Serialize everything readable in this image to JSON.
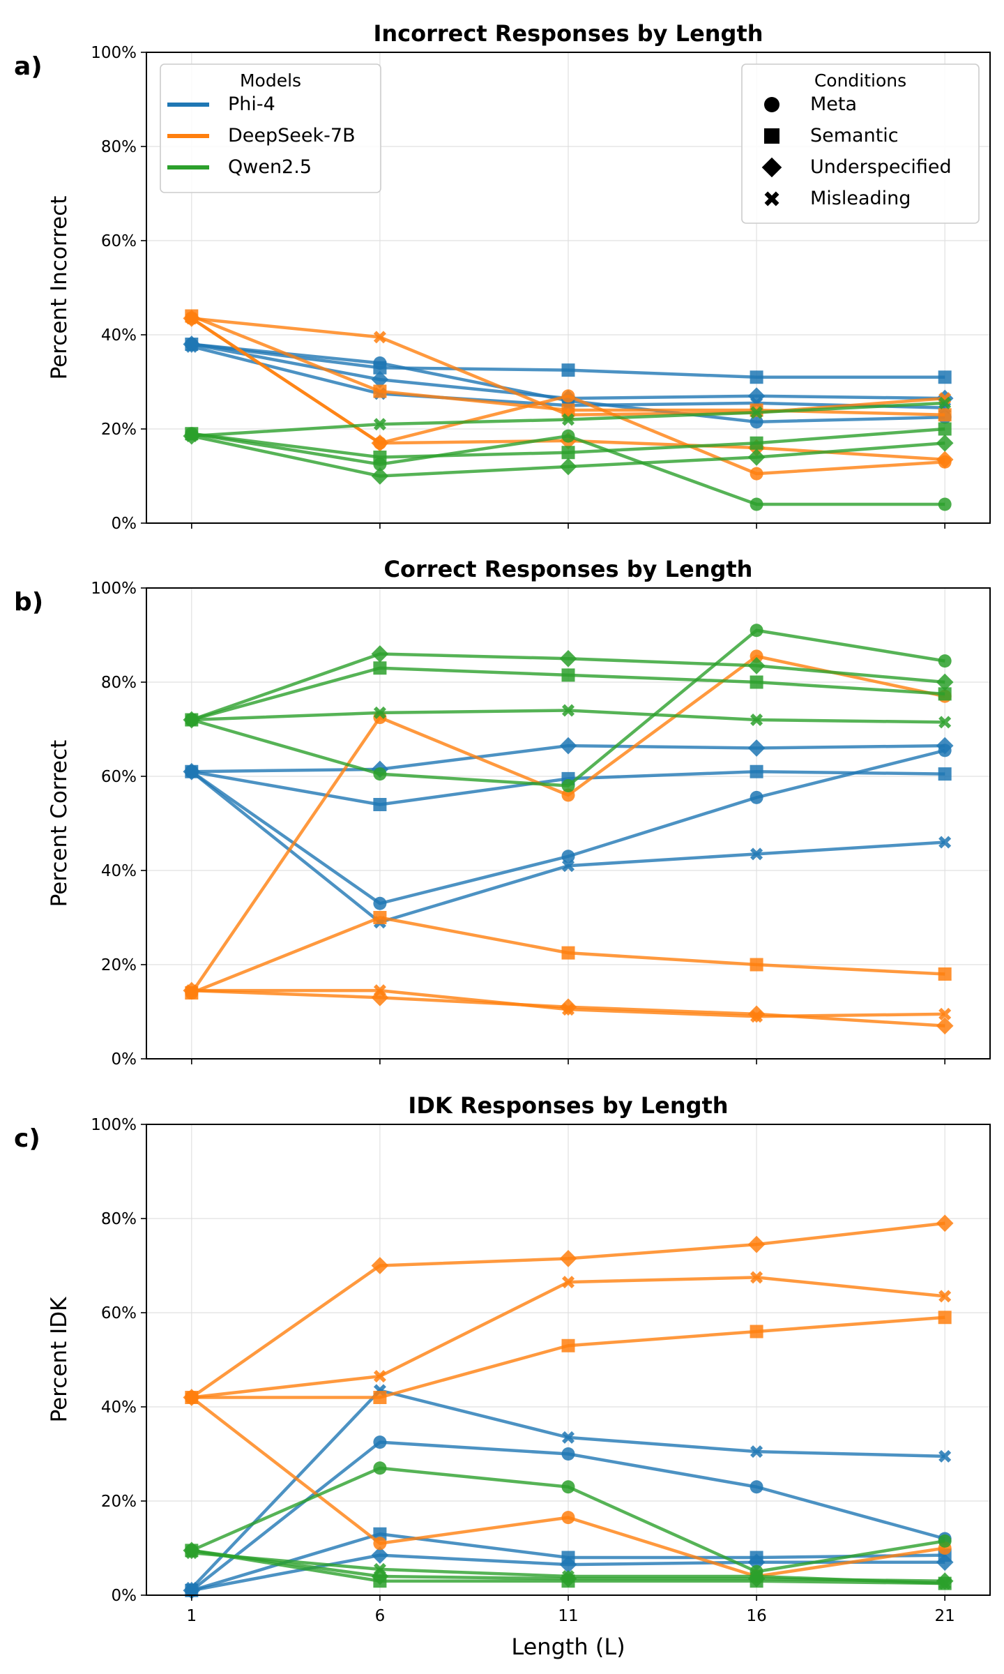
{
  "colors": {
    "Phi-4": "#1f77b4",
    "DeepSeek-7B": "#ff7f0e",
    "Qwen2.5": "#2ca02c"
  },
  "legend_models": {
    "title": "Models",
    "items": [
      "Phi-4",
      "DeepSeek-7B",
      "Qwen2.5"
    ],
    "placement": "top-left"
  },
  "legend_conditions": {
    "title": "Conditions",
    "items": [
      {
        "label": "Meta",
        "marker": "circle"
      },
      {
        "label": "Semantic",
        "marker": "square"
      },
      {
        "label": "Underspecified",
        "marker": "diamond"
      },
      {
        "label": "Misleading",
        "marker": "x"
      }
    ],
    "placement": "top-right"
  },
  "chart_data": [
    {
      "panel_label": "a)",
      "type": "line",
      "title": "Incorrect Responses by Length",
      "ylabel": "Percent Incorrect",
      "xlabel": "",
      "x": [
        1,
        6,
        11,
        16,
        21
      ],
      "xticks": [
        "1",
        "6",
        "11",
        "16",
        "21"
      ],
      "ylim": [
        0,
        100
      ],
      "yticks": [
        "0%",
        "20%",
        "40%",
        "60%",
        "80%",
        "100%"
      ],
      "grid": true,
      "series": [
        {
          "model": "Phi-4",
          "condition": "Meta",
          "marker": "circle",
          "values": [
            38,
            34,
            26,
            21.5,
            22.5
          ]
        },
        {
          "model": "Phi-4",
          "condition": "Semantic",
          "marker": "square",
          "values": [
            38,
            33,
            32.5,
            31,
            31
          ]
        },
        {
          "model": "Phi-4",
          "condition": "Underspecified",
          "marker": "diamond",
          "values": [
            38,
            30.5,
            26.5,
            27,
            26.5
          ]
        },
        {
          "model": "Phi-4",
          "condition": "Misleading",
          "marker": "x",
          "values": [
            37.5,
            27.5,
            25,
            25.5,
            24.5
          ]
        },
        {
          "model": "DeepSeek-7B",
          "condition": "Meta",
          "marker": "circle",
          "values": [
            43.5,
            17,
            27,
            10.5,
            13
          ]
        },
        {
          "model": "DeepSeek-7B",
          "condition": "Semantic",
          "marker": "square",
          "values": [
            44,
            28,
            24,
            24,
            23
          ]
        },
        {
          "model": "DeepSeek-7B",
          "condition": "Underspecified",
          "marker": "diamond",
          "values": [
            43.5,
            17,
            17.5,
            16,
            13.5
          ]
        },
        {
          "model": "DeepSeek-7B",
          "condition": "Misleading",
          "marker": "x",
          "values": [
            43.5,
            39.5,
            23,
            23.5,
            26.5
          ]
        },
        {
          "model": "Qwen2.5",
          "condition": "Meta",
          "marker": "circle",
          "values": [
            19,
            12.5,
            18.5,
            4,
            4
          ]
        },
        {
          "model": "Qwen2.5",
          "condition": "Semantic",
          "marker": "square",
          "values": [
            19,
            14,
            15,
            17,
            20
          ]
        },
        {
          "model": "Qwen2.5",
          "condition": "Underspecified",
          "marker": "diamond",
          "values": [
            18.5,
            10,
            12,
            14,
            17
          ]
        },
        {
          "model": "Qwen2.5",
          "condition": "Misleading",
          "marker": "x",
          "values": [
            18.5,
            21,
            22,
            23.5,
            25.5
          ]
        }
      ]
    },
    {
      "panel_label": "b)",
      "type": "line",
      "title": "Correct Responses by Length",
      "ylabel": "Percent Correct",
      "xlabel": "",
      "x": [
        1,
        6,
        11,
        16,
        21
      ],
      "xticks": [
        "1",
        "6",
        "11",
        "16",
        "21"
      ],
      "ylim": [
        0,
        100
      ],
      "yticks": [
        "0%",
        "20%",
        "40%",
        "60%",
        "80%",
        "100%"
      ],
      "grid": true,
      "series": [
        {
          "model": "Phi-4",
          "condition": "Meta",
          "marker": "circle",
          "values": [
            61,
            33,
            43,
            55.5,
            65.5
          ]
        },
        {
          "model": "Phi-4",
          "condition": "Semantic",
          "marker": "square",
          "values": [
            61,
            54,
            59.5,
            61,
            60.5
          ]
        },
        {
          "model": "Phi-4",
          "condition": "Underspecified",
          "marker": "diamond",
          "values": [
            61,
            61.5,
            66.5,
            66,
            66.5
          ]
        },
        {
          "model": "Phi-4",
          "condition": "Misleading",
          "marker": "x",
          "values": [
            61,
            29,
            41,
            43.5,
            46
          ]
        },
        {
          "model": "DeepSeek-7B",
          "condition": "Meta",
          "marker": "circle",
          "values": [
            14,
            72.5,
            56,
            85.5,
            77
          ]
        },
        {
          "model": "DeepSeek-7B",
          "condition": "Semantic",
          "marker": "square",
          "values": [
            14,
            30,
            22.5,
            20,
            18
          ]
        },
        {
          "model": "DeepSeek-7B",
          "condition": "Underspecified",
          "marker": "diamond",
          "values": [
            14.5,
            13,
            11,
            9.5,
            7
          ]
        },
        {
          "model": "DeepSeek-7B",
          "condition": "Misleading",
          "marker": "x",
          "values": [
            14.5,
            14.5,
            10.5,
            9,
            9.5
          ]
        },
        {
          "model": "Qwen2.5",
          "condition": "Meta",
          "marker": "circle",
          "values": [
            72,
            60.5,
            58,
            91,
            84.5
          ]
        },
        {
          "model": "Qwen2.5",
          "condition": "Semantic",
          "marker": "square",
          "values": [
            72,
            83,
            81.5,
            80,
            77.5
          ]
        },
        {
          "model": "Qwen2.5",
          "condition": "Underspecified",
          "marker": "diamond",
          "values": [
            72,
            86,
            85,
            83.5,
            80
          ]
        },
        {
          "model": "Qwen2.5",
          "condition": "Misleading",
          "marker": "x",
          "values": [
            72,
            73.5,
            74,
            72,
            71.5
          ]
        }
      ]
    },
    {
      "panel_label": "c)",
      "type": "line",
      "title": "IDK Responses by Length",
      "ylabel": "Percent IDK",
      "xlabel": "Length (L)",
      "x": [
        1,
        6,
        11,
        16,
        21
      ],
      "xticks": [
        "1",
        "6",
        "11",
        "16",
        "21"
      ],
      "ylim": [
        0,
        100
      ],
      "yticks": [
        "0%",
        "20%",
        "40%",
        "60%",
        "80%",
        "100%"
      ],
      "grid": true,
      "series": [
        {
          "model": "Phi-4",
          "condition": "Meta",
          "marker": "circle",
          "values": [
            1,
            32.5,
            30,
            23,
            12
          ]
        },
        {
          "model": "Phi-4",
          "condition": "Semantic",
          "marker": "square",
          "values": [
            1,
            13,
            8,
            8,
            8.5
          ]
        },
        {
          "model": "Phi-4",
          "condition": "Underspecified",
          "marker": "diamond",
          "values": [
            1,
            8.5,
            6.5,
            7,
            7
          ]
        },
        {
          "model": "Phi-4",
          "condition": "Misleading",
          "marker": "x",
          "values": [
            1.5,
            43.5,
            33.5,
            30.5,
            29.5
          ]
        },
        {
          "model": "DeepSeek-7B",
          "condition": "Meta",
          "marker": "circle",
          "values": [
            42,
            11,
            16.5,
            4,
            10
          ]
        },
        {
          "model": "DeepSeek-7B",
          "condition": "Semantic",
          "marker": "square",
          "values": [
            42,
            42,
            53,
            56,
            59
          ]
        },
        {
          "model": "DeepSeek-7B",
          "condition": "Underspecified",
          "marker": "diamond",
          "values": [
            42,
            70,
            71.5,
            74.5,
            79
          ]
        },
        {
          "model": "DeepSeek-7B",
          "condition": "Misleading",
          "marker": "x",
          "values": [
            42,
            46.5,
            66.5,
            67.5,
            63.5
          ]
        },
        {
          "model": "Qwen2.5",
          "condition": "Meta",
          "marker": "circle",
          "values": [
            9.5,
            27,
            23,
            5,
            11.5
          ]
        },
        {
          "model": "Qwen2.5",
          "condition": "Semantic",
          "marker": "square",
          "values": [
            9.5,
            3,
            3,
            3,
            2.5
          ]
        },
        {
          "model": "Qwen2.5",
          "condition": "Underspecified",
          "marker": "diamond",
          "values": [
            9.5,
            4,
            3.5,
            3.5,
            3
          ]
        },
        {
          "model": "Qwen2.5",
          "condition": "Misleading",
          "marker": "x",
          "values": [
            9,
            5.5,
            4,
            4,
            2.5
          ]
        }
      ]
    }
  ]
}
